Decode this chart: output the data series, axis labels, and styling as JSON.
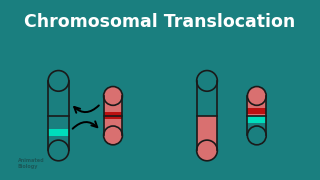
{
  "bg_color": "#1a7f7f",
  "panel_color": "#f5f5f5",
  "title": "Chromosomal Translocation",
  "title_color": "#ffffff",
  "title_fontsize": 12.5,
  "teal": "#1a7f7f",
  "salmon": "#d97070",
  "red_band": "#bb1111",
  "cyan_band": "#00ddbb",
  "outline": "#1a1a1a",
  "lw": 1.2,
  "arrow_color": "#1a7f7f"
}
